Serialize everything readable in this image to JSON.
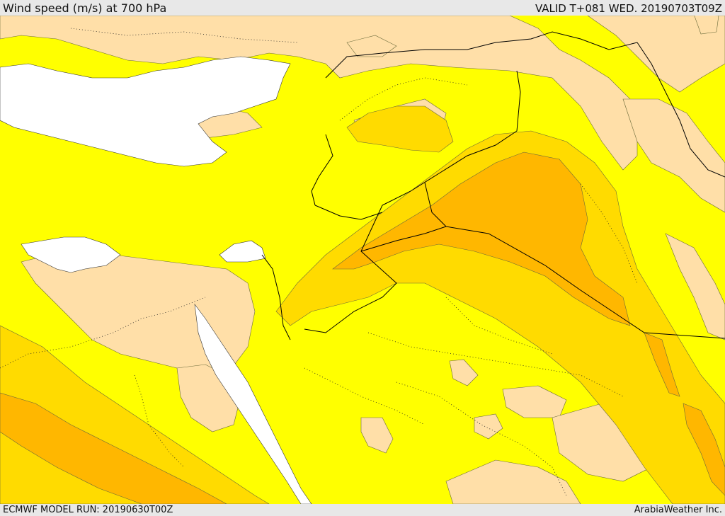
{
  "header": {
    "title": "Wind speed (m/s) at 700 hPa",
    "valid": "VALID T+081 WED. 20190703T09Z"
  },
  "footer": {
    "model_run": "ECMWF MODEL RUN: 20190630T00Z",
    "brand": "ArabiaWeather Inc."
  },
  "colors": {
    "band_0_5": "#ffdfa8",
    "band_5_10": "#ffff00",
    "band_10_15": "#ffdb00",
    "band_15_20": "#ffb700",
    "sea": "#ffffff",
    "border": "#000000"
  }
}
